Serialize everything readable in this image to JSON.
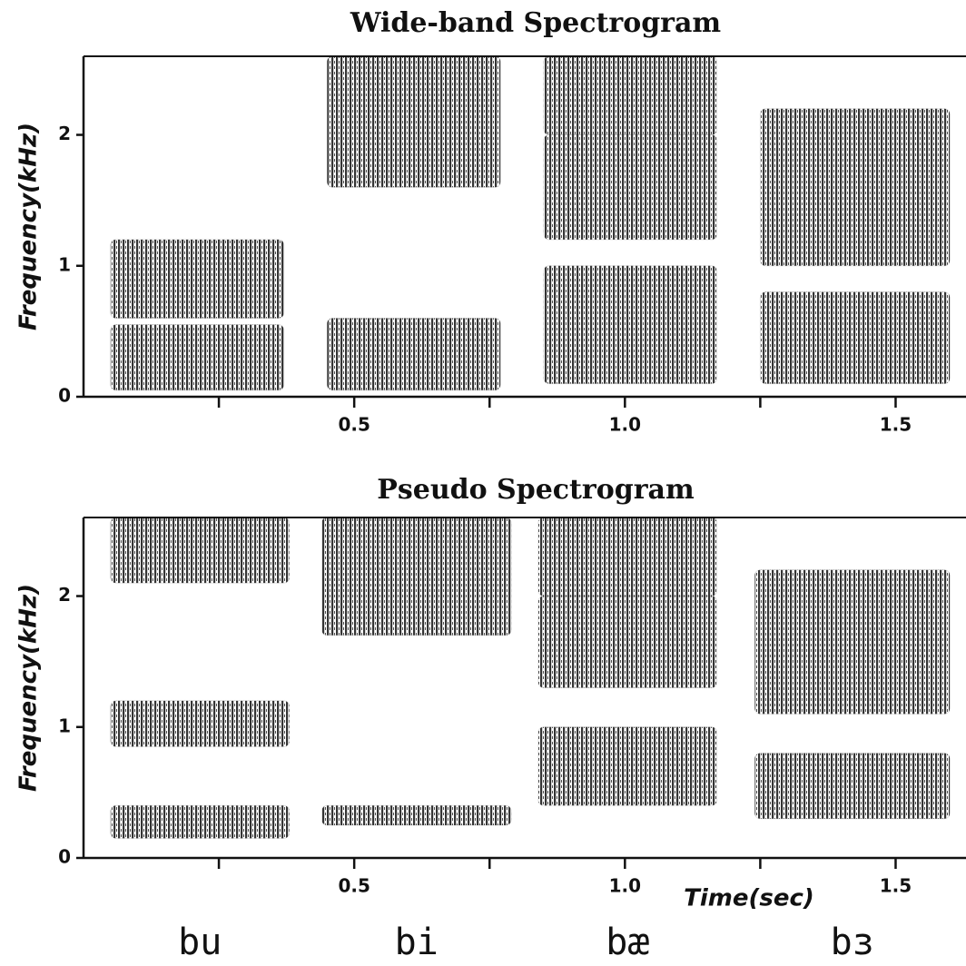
{
  "chart_data": [
    {
      "type": "spectrogram",
      "title": "Wide-band Spectrogram",
      "ylabel": "Frequency(kHz)",
      "xlim": [
        0,
        1.63
      ],
      "ylim": [
        0,
        2.6
      ],
      "xticks": [
        0.5,
        {
          "value": 1,
          "label": "1.0"
        },
        1.5
      ],
      "xminorticks": [
        0.25,
        0.75,
        1.25
      ],
      "yticks": [
        0,
        1,
        2
      ],
      "color": "#111111",
      "segments": [
        {
          "start": 0.05,
          "end": 0.37,
          "formants": [
            [
              0.05,
              0.55
            ],
            [
              0.6,
              1.2
            ]
          ]
        },
        {
          "start": 0.45,
          "end": 0.77,
          "formants": [
            [
              0.05,
              0.6
            ],
            [
              1.6,
              2.6
            ]
          ]
        },
        {
          "start": 0.85,
          "end": 1.17,
          "formants": [
            [
              0.1,
              1.0
            ],
            [
              1.2,
              2.0
            ],
            [
              2.0,
              2.6
            ]
          ]
        },
        {
          "start": 1.25,
          "end": 1.6,
          "formants": [
            [
              0.1,
              0.8
            ],
            [
              1.0,
              2.2
            ]
          ]
        }
      ]
    },
    {
      "type": "spectrogram",
      "title": "Pseudo Spectrogram",
      "ylabel": "Frequency(kHz)",
      "xlabel": "Time(sec)",
      "xlim": [
        0,
        1.63
      ],
      "ylim": [
        0,
        2.6
      ],
      "xticks": [
        0.5,
        {
          "value": 1,
          "label": "1.0"
        },
        1.5
      ],
      "xminorticks": [
        0.25,
        0.75,
        1.25
      ],
      "yticks": [
        0,
        1,
        2
      ],
      "color": "#111111",
      "segments": [
        {
          "start": 0.05,
          "end": 0.38,
          "formants": [
            [
              0.15,
              0.4
            ],
            [
              0.85,
              1.2
            ],
            [
              2.1,
              2.6
            ]
          ]
        },
        {
          "start": 0.44,
          "end": 0.79,
          "formants": [
            [
              0.25,
              0.4
            ],
            [
              1.7,
              2.6
            ]
          ]
        },
        {
          "start": 0.84,
          "end": 1.17,
          "formants": [
            [
              0.4,
              1.0
            ],
            [
              1.3,
              2.0
            ],
            [
              2.0,
              2.6
            ]
          ]
        },
        {
          "start": 1.24,
          "end": 1.6,
          "formants": [
            [
              0.3,
              0.8
            ],
            [
              1.1,
              2.2
            ]
          ]
        }
      ]
    }
  ],
  "syllables": [
    "bu",
    "bi",
    "bæ",
    "bɜ"
  ]
}
